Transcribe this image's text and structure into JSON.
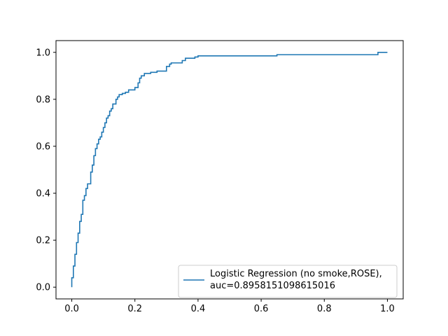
{
  "chart_data": {
    "type": "line",
    "title": "",
    "xlabel": "",
    "ylabel": "",
    "xlim": [
      -0.05,
      1.05
    ],
    "ylim": [
      -0.05,
      1.05
    ],
    "x_ticks": [
      0.0,
      0.2,
      0.4,
      0.6,
      0.8,
      1.0
    ],
    "y_ticks": [
      0.0,
      0.2,
      0.4,
      0.6,
      0.8,
      1.0
    ],
    "x_tick_labels": [
      "0.0",
      "0.2",
      "0.4",
      "0.6",
      "0.8",
      "1.0"
    ],
    "y_tick_labels": [
      "0.0",
      "0.2",
      "0.4",
      "0.6",
      "0.8",
      "1.0"
    ],
    "grid": false,
    "legend_position": "lower-right",
    "series": [
      {
        "name": "Logistic Regression (no smoke,ROSE),",
        "name_line2": "auc=0.8958151098615016",
        "color": "#1f77b4",
        "x": [
          0.0,
          0.0,
          0.005,
          0.005,
          0.01,
          0.01,
          0.015,
          0.015,
          0.02,
          0.02,
          0.025,
          0.025,
          0.03,
          0.03,
          0.035,
          0.035,
          0.04,
          0.04,
          0.045,
          0.045,
          0.05,
          0.05,
          0.06,
          0.06,
          0.065,
          0.065,
          0.07,
          0.07,
          0.075,
          0.075,
          0.08,
          0.08,
          0.085,
          0.085,
          0.09,
          0.09,
          0.095,
          0.095,
          0.1,
          0.1,
          0.105,
          0.105,
          0.11,
          0.11,
          0.115,
          0.115,
          0.12,
          0.12,
          0.125,
          0.125,
          0.13,
          0.13,
          0.14,
          0.14,
          0.145,
          0.145,
          0.15,
          0.15,
          0.16,
          0.16,
          0.17,
          0.17,
          0.18,
          0.18,
          0.2,
          0.2,
          0.21,
          0.21,
          0.215,
          0.215,
          0.22,
          0.22,
          0.23,
          0.23,
          0.25,
          0.25,
          0.27,
          0.27,
          0.3,
          0.3,
          0.31,
          0.31,
          0.315,
          0.315,
          0.35,
          0.35,
          0.36,
          0.36,
          0.39,
          0.39,
          0.4,
          0.4,
          0.65,
          0.65,
          0.97,
          0.97,
          1.0
        ],
        "y": [
          0.0,
          0.04,
          0.04,
          0.09,
          0.09,
          0.14,
          0.14,
          0.19,
          0.19,
          0.23,
          0.23,
          0.28,
          0.28,
          0.31,
          0.31,
          0.37,
          0.37,
          0.39,
          0.39,
          0.42,
          0.42,
          0.44,
          0.44,
          0.49,
          0.49,
          0.52,
          0.52,
          0.56,
          0.56,
          0.59,
          0.59,
          0.61,
          0.61,
          0.63,
          0.63,
          0.64,
          0.64,
          0.66,
          0.66,
          0.68,
          0.68,
          0.7,
          0.7,
          0.72,
          0.72,
          0.73,
          0.73,
          0.75,
          0.75,
          0.76,
          0.76,
          0.78,
          0.78,
          0.8,
          0.8,
          0.81,
          0.81,
          0.82,
          0.82,
          0.825,
          0.825,
          0.83,
          0.83,
          0.84,
          0.84,
          0.85,
          0.85,
          0.87,
          0.87,
          0.89,
          0.89,
          0.9,
          0.9,
          0.91,
          0.91,
          0.915,
          0.915,
          0.92,
          0.92,
          0.94,
          0.94,
          0.95,
          0.95,
          0.955,
          0.955,
          0.965,
          0.965,
          0.975,
          0.975,
          0.98,
          0.98,
          0.985,
          0.985,
          0.99,
          0.99,
          1.0,
          1.0
        ]
      }
    ]
  }
}
